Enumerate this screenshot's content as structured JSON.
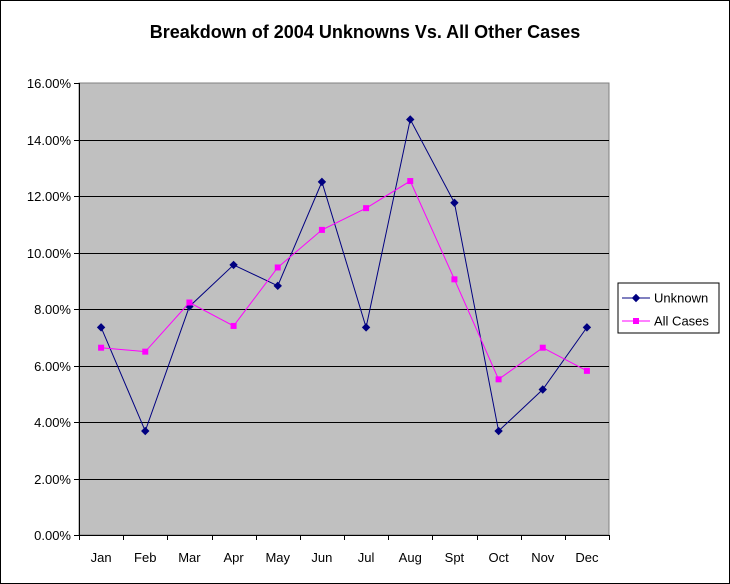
{
  "chart_data": {
    "type": "line",
    "title": "Breakdown of 2004 Unknowns Vs. All Other Cases",
    "xlabel": "",
    "ylabel": "",
    "categories": [
      "Jan",
      "Feb",
      "Mar",
      "Apr",
      "May",
      "Jun",
      "Jul",
      "Aug",
      "Spt",
      "Oct",
      "Nov",
      "Dec"
    ],
    "y_ticks": [
      "0.00%",
      "2.00%",
      "4.00%",
      "6.00%",
      "8.00%",
      "10.00%",
      "12.00%",
      "14.00%",
      "16.00%"
    ],
    "ylim": [
      0,
      16
    ],
    "grid": true,
    "legend_position": "right",
    "plot_background": "#c0c0c0",
    "series": [
      {
        "name": "Unknown",
        "color": "#000080",
        "marker": "diamond",
        "values": [
          7.35,
          3.68,
          8.09,
          9.56,
          8.82,
          12.5,
          7.35,
          14.71,
          11.76,
          3.68,
          5.15,
          7.35
        ]
      },
      {
        "name": "All Cases",
        "color": "#ff00ff",
        "marker": "square",
        "values": [
          6.63,
          6.49,
          8.23,
          7.4,
          9.47,
          10.8,
          11.57,
          12.53,
          9.05,
          5.51,
          6.63,
          5.81
        ]
      }
    ]
  }
}
